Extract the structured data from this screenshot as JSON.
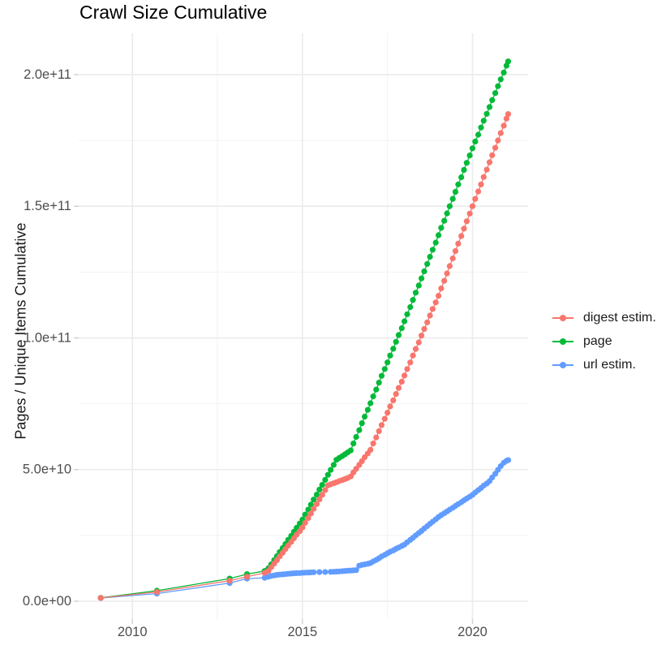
{
  "title": "Crawl Size Cumulative",
  "y_axis": {
    "title": "Pages / Unique Items Cumulative",
    "tick_labels": [
      "0.0e+00",
      "5.0e+10",
      "1.0e+11",
      "1.5e+11",
      "2.0e+11"
    ],
    "tick_values_billions": [
      0,
      50,
      100,
      150,
      200
    ],
    "minor_tick_values_billions": [
      25,
      75,
      125,
      175
    ]
  },
  "x_axis": {
    "tick_labels": [
      "2010",
      "2015",
      "2020"
    ],
    "tick_years": [
      2010,
      2015,
      2020
    ],
    "minor_tick_years": [
      2012.5,
      2017.5
    ]
  },
  "legend": {
    "items": [
      {
        "label": "digest estim.",
        "color": "#F8766D"
      },
      {
        "label": "page",
        "color": "#00BA38"
      },
      {
        "label": "url estim.",
        "color": "#619CFF"
      }
    ]
  },
  "chart_data": {
    "type": "line",
    "title": "Crawl Size Cumulative",
    "xlabel": "",
    "ylabel": "Pages / Unique Items Cumulative",
    "xlim": [
      2008.4,
      2021.65
    ],
    "ylim": [
      0,
      215000000000
    ],
    "values_unit": "billions (1e9) of pages / unique items, cumulative",
    "grid": true,
    "legend_position": "right",
    "marker": "point",
    "series": [
      {
        "name": "digest estim.",
        "color": "#F8766D",
        "points": [
          [
            2009.07,
            1.25
          ],
          [
            2010.72,
            3.5
          ],
          [
            2012.86,
            7.8
          ],
          [
            2013.37,
            9.3
          ],
          [
            2013.89,
            10.8
          ],
          [
            2014.0,
            11.5
          ],
          [
            2014.08,
            12.9
          ],
          [
            2014.17,
            14.3
          ],
          [
            2014.25,
            15.6
          ],
          [
            2014.33,
            17.0
          ],
          [
            2014.42,
            18.4
          ],
          [
            2014.5,
            19.8
          ],
          [
            2014.58,
            21.1
          ],
          [
            2014.67,
            22.5
          ],
          [
            2014.75,
            23.9
          ],
          [
            2014.83,
            25.3
          ],
          [
            2014.92,
            26.6
          ],
          [
            2015.0,
            28.0
          ],
          [
            2015.08,
            29.8
          ],
          [
            2015.17,
            31.6
          ],
          [
            2015.25,
            33.3
          ],
          [
            2015.33,
            35.1
          ],
          [
            2015.42,
            36.9
          ],
          [
            2015.5,
            38.7
          ],
          [
            2015.58,
            40.4
          ],
          [
            2015.67,
            42.2
          ],
          [
            2015.75,
            44.0
          ],
          [
            2015.83,
            44.4
          ],
          [
            2015.92,
            44.8
          ],
          [
            2016.0,
            45.2
          ],
          [
            2016.08,
            45.6
          ],
          [
            2016.17,
            46.0
          ],
          [
            2016.25,
            46.4
          ],
          [
            2016.33,
            46.8
          ],
          [
            2016.42,
            47.4
          ],
          [
            2016.5,
            48.9
          ],
          [
            2016.58,
            50.3
          ],
          [
            2016.67,
            51.8
          ],
          [
            2016.75,
            53.2
          ],
          [
            2016.83,
            54.7
          ],
          [
            2016.92,
            56.1
          ],
          [
            2017.0,
            57.5
          ],
          [
            2017.08,
            59.9
          ],
          [
            2017.17,
            62.2
          ],
          [
            2017.25,
            64.6
          ],
          [
            2017.33,
            66.9
          ],
          [
            2017.42,
            69.3
          ],
          [
            2017.5,
            71.6
          ],
          [
            2017.58,
            74.0
          ],
          [
            2017.67,
            76.3
          ],
          [
            2017.75,
            78.7
          ],
          [
            2017.83,
            81.0
          ],
          [
            2017.92,
            83.4
          ],
          [
            2018.0,
            85.7
          ],
          [
            2018.08,
            88.2
          ],
          [
            2018.17,
            90.7
          ],
          [
            2018.25,
            93.3
          ],
          [
            2018.33,
            95.8
          ],
          [
            2018.42,
            98.3
          ],
          [
            2018.5,
            100.9
          ],
          [
            2018.58,
            103.4
          ],
          [
            2018.67,
            105.9
          ],
          [
            2018.75,
            108.5
          ],
          [
            2018.83,
            111.0
          ],
          [
            2018.92,
            113.5
          ],
          [
            2019.0,
            116.0
          ],
          [
            2019.08,
            118.8
          ],
          [
            2019.17,
            121.7
          ],
          [
            2019.25,
            124.5
          ],
          [
            2019.33,
            127.3
          ],
          [
            2019.42,
            130.2
          ],
          [
            2019.5,
            133.0
          ],
          [
            2019.58,
            135.8
          ],
          [
            2019.67,
            138.7
          ],
          [
            2019.75,
            141.5
          ],
          [
            2019.83,
            144.3
          ],
          [
            2019.92,
            147.2
          ],
          [
            2020.0,
            150.0
          ],
          [
            2020.08,
            152.8
          ],
          [
            2020.17,
            155.6
          ],
          [
            2020.25,
            158.3
          ],
          [
            2020.33,
            161.1
          ],
          [
            2020.42,
            163.9
          ],
          [
            2020.5,
            166.7
          ],
          [
            2020.58,
            169.4
          ],
          [
            2020.67,
            172.2
          ],
          [
            2020.75,
            175.0
          ],
          [
            2020.83,
            177.8
          ],
          [
            2020.92,
            180.6
          ],
          [
            2021.0,
            183.3
          ],
          [
            2021.05,
            185.0
          ]
        ]
      },
      {
        "name": "page",
        "color": "#00BA38",
        "points": [
          [
            2009.07,
            1.3
          ],
          [
            2010.72,
            4.0
          ],
          [
            2012.86,
            8.6
          ],
          [
            2013.37,
            10.3
          ],
          [
            2013.89,
            11.5
          ],
          [
            2014.0,
            12.5
          ],
          [
            2014.08,
            14.0
          ],
          [
            2014.17,
            15.6
          ],
          [
            2014.25,
            17.1
          ],
          [
            2014.33,
            18.7
          ],
          [
            2014.42,
            20.2
          ],
          [
            2014.5,
            21.7
          ],
          [
            2014.58,
            23.3
          ],
          [
            2014.67,
            24.8
          ],
          [
            2014.75,
            26.4
          ],
          [
            2014.83,
            27.9
          ],
          [
            2014.92,
            29.5
          ],
          [
            2015.0,
            31.0
          ],
          [
            2015.08,
            32.9
          ],
          [
            2015.17,
            34.8
          ],
          [
            2015.25,
            36.7
          ],
          [
            2015.33,
            38.6
          ],
          [
            2015.42,
            40.5
          ],
          [
            2015.5,
            42.4
          ],
          [
            2015.58,
            44.2
          ],
          [
            2015.67,
            46.1
          ],
          [
            2015.75,
            48.0
          ],
          [
            2015.83,
            49.9
          ],
          [
            2015.92,
            51.8
          ],
          [
            2016.0,
            53.7
          ],
          [
            2016.08,
            54.4
          ],
          [
            2016.17,
            55.1
          ],
          [
            2016.25,
            55.8
          ],
          [
            2016.33,
            56.5
          ],
          [
            2016.42,
            57.3
          ],
          [
            2016.5,
            59.9
          ],
          [
            2016.58,
            62.4
          ],
          [
            2016.67,
            65.0
          ],
          [
            2016.75,
            67.6
          ],
          [
            2016.83,
            70.1
          ],
          [
            2016.92,
            72.7
          ],
          [
            2017.0,
            75.2
          ],
          [
            2017.08,
            77.8
          ],
          [
            2017.17,
            80.4
          ],
          [
            2017.25,
            83.0
          ],
          [
            2017.33,
            85.6
          ],
          [
            2017.42,
            88.2
          ],
          [
            2017.5,
            90.7
          ],
          [
            2017.58,
            93.3
          ],
          [
            2017.67,
            95.9
          ],
          [
            2017.75,
            98.5
          ],
          [
            2017.83,
            101.1
          ],
          [
            2017.92,
            103.7
          ],
          [
            2018.0,
            106.3
          ],
          [
            2018.08,
            109.0
          ],
          [
            2018.17,
            111.7
          ],
          [
            2018.25,
            114.4
          ],
          [
            2018.33,
            117.2
          ],
          [
            2018.42,
            119.9
          ],
          [
            2018.5,
            122.6
          ],
          [
            2018.58,
            125.3
          ],
          [
            2018.67,
            128.1
          ],
          [
            2018.75,
            130.8
          ],
          [
            2018.83,
            133.5
          ],
          [
            2018.92,
            136.2
          ],
          [
            2019.0,
            139.0
          ],
          [
            2019.08,
            141.8
          ],
          [
            2019.17,
            144.5
          ],
          [
            2019.25,
            147.3
          ],
          [
            2019.33,
            150.0
          ],
          [
            2019.42,
            152.8
          ],
          [
            2019.5,
            155.5
          ],
          [
            2019.58,
            158.3
          ],
          [
            2019.67,
            161.0
          ],
          [
            2019.75,
            163.8
          ],
          [
            2019.83,
            166.5
          ],
          [
            2019.92,
            169.3
          ],
          [
            2020.0,
            172.0
          ],
          [
            2020.08,
            174.6
          ],
          [
            2020.17,
            177.2
          ],
          [
            2020.25,
            179.9
          ],
          [
            2020.33,
            182.5
          ],
          [
            2020.42,
            185.1
          ],
          [
            2020.5,
            187.7
          ],
          [
            2020.58,
            190.3
          ],
          [
            2020.67,
            193.0
          ],
          [
            2020.75,
            195.6
          ],
          [
            2020.83,
            198.2
          ],
          [
            2020.92,
            200.8
          ],
          [
            2021.0,
            203.4
          ],
          [
            2021.05,
            205.0
          ]
        ]
      },
      {
        "name": "url estim.",
        "color": "#619CFF",
        "points": [
          [
            2009.07,
            1.2
          ],
          [
            2010.72,
            2.9
          ],
          [
            2012.86,
            6.9
          ],
          [
            2013.37,
            8.6
          ],
          [
            2013.89,
            8.9
          ],
          [
            2014.0,
            9.3
          ],
          [
            2014.08,
            9.6
          ],
          [
            2014.17,
            9.8
          ],
          [
            2014.25,
            10.0
          ],
          [
            2014.33,
            10.1
          ],
          [
            2014.42,
            10.2
          ],
          [
            2014.5,
            10.3
          ],
          [
            2014.58,
            10.4
          ],
          [
            2014.67,
            10.5
          ],
          [
            2014.75,
            10.6
          ],
          [
            2014.83,
            10.65
          ],
          [
            2014.92,
            10.7
          ],
          [
            2015.0,
            10.8
          ],
          [
            2015.08,
            10.85
          ],
          [
            2015.17,
            10.9
          ],
          [
            2015.25,
            10.95
          ],
          [
            2015.33,
            11.0
          ],
          [
            2015.5,
            11.05
          ],
          [
            2015.67,
            11.1
          ],
          [
            2015.83,
            11.15
          ],
          [
            2015.92,
            11.2
          ],
          [
            2016.0,
            11.25
          ],
          [
            2016.08,
            11.3
          ],
          [
            2016.17,
            11.4
          ],
          [
            2016.25,
            11.5
          ],
          [
            2016.33,
            11.6
          ],
          [
            2016.42,
            11.65
          ],
          [
            2016.5,
            11.7
          ],
          [
            2016.58,
            11.8
          ],
          [
            2016.67,
            13.5
          ],
          [
            2016.75,
            13.8
          ],
          [
            2016.83,
            14.0
          ],
          [
            2016.92,
            14.2
          ],
          [
            2017.0,
            14.5
          ],
          [
            2017.08,
            15.1
          ],
          [
            2017.17,
            15.7
          ],
          [
            2017.25,
            16.3
          ],
          [
            2017.33,
            17.0
          ],
          [
            2017.42,
            17.6
          ],
          [
            2017.5,
            18.2
          ],
          [
            2017.58,
            18.8
          ],
          [
            2017.67,
            19.3
          ],
          [
            2017.75,
            19.9
          ],
          [
            2017.83,
            20.4
          ],
          [
            2017.92,
            21.0
          ],
          [
            2018.0,
            21.5
          ],
          [
            2018.08,
            22.4
          ],
          [
            2018.17,
            23.3
          ],
          [
            2018.25,
            24.1
          ],
          [
            2018.33,
            25.0
          ],
          [
            2018.42,
            25.9
          ],
          [
            2018.5,
            26.7
          ],
          [
            2018.58,
            27.6
          ],
          [
            2018.67,
            28.5
          ],
          [
            2018.75,
            29.4
          ],
          [
            2018.83,
            30.2
          ],
          [
            2018.92,
            31.1
          ],
          [
            2019.0,
            32.0
          ],
          [
            2019.08,
            32.7
          ],
          [
            2019.17,
            33.4
          ],
          [
            2019.25,
            34.1
          ],
          [
            2019.33,
            34.8
          ],
          [
            2019.42,
            35.5
          ],
          [
            2019.5,
            36.2
          ],
          [
            2019.58,
            36.9
          ],
          [
            2019.67,
            37.6
          ],
          [
            2019.75,
            38.3
          ],
          [
            2019.83,
            39.0
          ],
          [
            2019.92,
            39.7
          ],
          [
            2020.0,
            40.4
          ],
          [
            2020.08,
            41.3
          ],
          [
            2020.17,
            42.2
          ],
          [
            2020.25,
            43.0
          ],
          [
            2020.33,
            43.9
          ],
          [
            2020.42,
            44.7
          ],
          [
            2020.5,
            45.6
          ],
          [
            2020.58,
            47.0
          ],
          [
            2020.67,
            48.4
          ],
          [
            2020.75,
            49.9
          ],
          [
            2020.83,
            51.3
          ],
          [
            2020.92,
            52.6
          ],
          [
            2021.0,
            53.3
          ],
          [
            2021.05,
            53.6
          ]
        ]
      }
    ]
  }
}
